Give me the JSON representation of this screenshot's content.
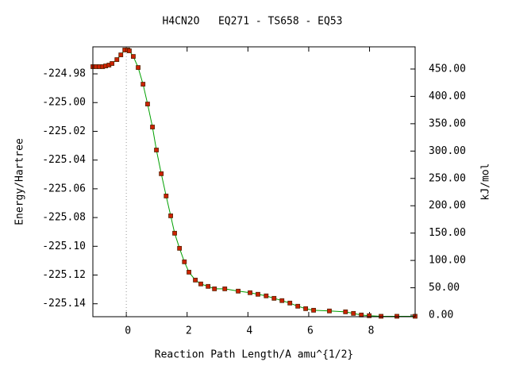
{
  "chart_data": {
    "type": "line",
    "title": "H4CN2O   EQ271 - TS658 - EQ53",
    "xlabel": "Reaction Path Length/A amu^{1/2}",
    "ylabel": "Energy/Hartree",
    "y2label": "kJ/mol",
    "xlim": [
      -1.1,
      9.5
    ],
    "xticks": [
      0,
      2,
      4,
      6,
      8
    ],
    "ylim": [
      -225.149,
      -224.9612
    ],
    "yticks": [
      -224.98,
      {
        "value": -225.0,
        "label": "-225.00"
      },
      -225.02,
      -225.04,
      -225.06,
      -225.08,
      {
        "value": -225.1,
        "label": "-225.10"
      },
      -225.12,
      -225.14
    ],
    "y2lim": [
      -2.9,
      490.6
    ],
    "y2ticks": [
      {
        "value": 0,
        "label": "0.00"
      },
      {
        "value": 50,
        "label": "50.00"
      },
      {
        "value": 100,
        "label": "100.00"
      },
      {
        "value": 150,
        "label": "150.00"
      },
      {
        "value": 200,
        "label": "200.00"
      },
      {
        "value": 250,
        "label": "250.00"
      },
      {
        "value": 300,
        "label": "300.00"
      },
      {
        "value": 350,
        "label": "350.00"
      },
      {
        "value": 400,
        "label": "400.00"
      },
      {
        "value": 450,
        "label": "450.00"
      }
    ],
    "vline": 0,
    "series": [
      {
        "color": "#00a000",
        "marker_color": "#cc2200",
        "x": [
          -1.1,
          -0.99,
          -0.89,
          -0.78,
          -0.68,
          -0.57,
          -0.47,
          -0.31,
          -0.18,
          -0.05,
          0.05,
          0.1,
          0.23,
          0.39,
          0.55,
          0.7,
          0.86,
          0.99,
          1.15,
          1.31,
          1.46,
          1.59,
          1.75,
          1.91,
          2.06,
          2.27,
          2.45,
          2.69,
          2.9,
          3.24,
          3.68,
          4.07,
          4.33,
          4.6,
          4.86,
          5.12,
          5.38,
          5.64,
          5.9,
          6.16,
          6.68,
          7.21,
          7.47,
          7.73,
          7.99,
          8.38,
          8.9,
          9.5
        ],
        "values": [
          -224.975,
          -224.975,
          -224.975,
          -224.975,
          -224.9745,
          -224.9739,
          -224.9728,
          -224.9701,
          -224.9668,
          -224.9634,
          -224.9634,
          -224.964,
          -224.9679,
          -224.9756,
          -224.9872,
          -225.001,
          -225.017,
          -225.033,
          -225.0495,
          -225.065,
          -225.0788,
          -225.0909,
          -225.1014,
          -225.1108,
          -225.118,
          -225.1235,
          -225.1262,
          -225.1279,
          -225.1296,
          -225.1296,
          -225.1312,
          -225.1323,
          -225.1334,
          -225.1345,
          -225.1362,
          -225.1378,
          -225.1395,
          -225.1417,
          -225.1434,
          -225.1445,
          -225.145,
          -225.1456,
          -225.1467,
          -225.1478,
          -225.1483,
          -225.1487,
          -225.1487,
          -225.1487
        ]
      }
    ]
  }
}
